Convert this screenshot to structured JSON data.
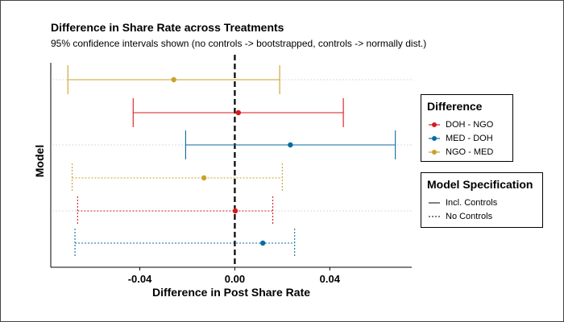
{
  "chart_data": {
    "type": "errorbar",
    "title": "Difference in Share Rate across Treatments",
    "subtitle": "95% confidence intervals shown (no controls -> bootstrapped, controls -> normally dist.)",
    "xlabel": "Difference in Post Share Rate",
    "ylabel": "Model",
    "xlim": [
      -0.0775,
      0.0745
    ],
    "x_ticks": [
      -0.04,
      0,
      0.04
    ],
    "x_tick_labels": [
      "-0.04",
      "0.00",
      "0.04"
    ],
    "reference_line_x": 0,
    "rows": [
      {
        "difference": "NGO - MED",
        "spec": "Incl. Controls",
        "estimate": -0.0257,
        "low": -0.0703,
        "high": 0.0189
      },
      {
        "difference": "DOH - NGO",
        "spec": "Incl. Controls",
        "estimate": 0.0015,
        "low": -0.0428,
        "high": 0.0457
      },
      {
        "difference": "MED - DOH",
        "spec": "Incl. Controls",
        "estimate": 0.0234,
        "low": -0.0207,
        "high": 0.0676
      },
      {
        "difference": "NGO - MED",
        "spec": "No Controls",
        "estimate": -0.013,
        "low": -0.0685,
        "high": 0.02
      },
      {
        "difference": "DOH - NGO",
        "spec": "No Controls",
        "estimate": 0.0002,
        "low": -0.0662,
        "high": 0.016
      },
      {
        "difference": "MED - DOH",
        "spec": "No Controls",
        "estimate": 0.0118,
        "low": -0.0673,
        "high": 0.0252
      }
    ],
    "legend_difference": {
      "title": "Difference",
      "items": [
        {
          "label": "DOH - NGO",
          "color": "#d7191c"
        },
        {
          "label": "MED - DOH",
          "color": "#0a6aa1"
        },
        {
          "label": "NGO - MED",
          "color": "#c9a227"
        }
      ]
    },
    "legend_spec": {
      "title": "Model Specification",
      "items": [
        {
          "label": "Incl. Controls",
          "line": "solid"
        },
        {
          "label": "No Controls",
          "line": "dotted"
        }
      ]
    },
    "grid": "horizontal dotted at some rows",
    "legend_position": "right"
  }
}
